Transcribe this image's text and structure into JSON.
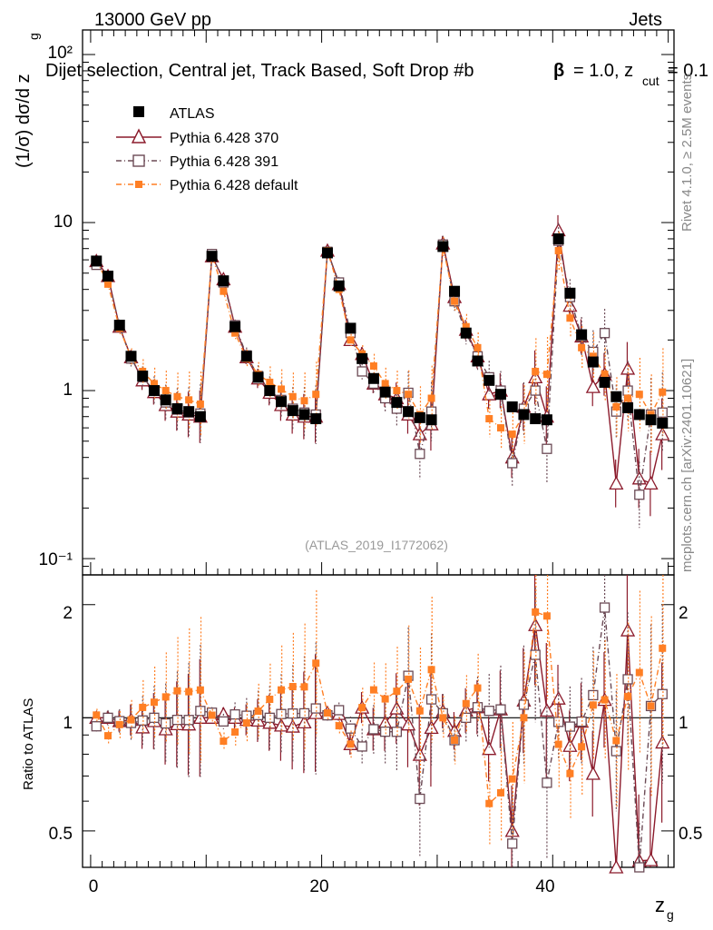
{
  "header": {
    "energy_label": "13000 GeV pp",
    "category_label": "Jets",
    "selection_text": "Dijet selection, Central jet, Track Based, Soft Drop #b",
    "beta_text": "= 1.0, z",
    "cut_sub": "cut",
    "zcut_value": "= 0.1",
    "side_top": "Rivet 4.1.0, ≥ 2.5M events",
    "side_bottom": "mcplots.cern.ch [arXiv:2401.10621]",
    "analysis_id": "(ATLAS_2019_I1772062)"
  },
  "axes": {
    "top_ylabel_main": "(1/σ) dσ/d z",
    "top_ylabel_sub": "g",
    "bottom_ylabel": "Ratio to ATLAS",
    "xlabel_main": "z",
    "xlabel_sub": "g",
    "top_ticks": [
      "10⁻¹",
      "1",
      "10",
      "10²"
    ],
    "bottom_ticks": [
      "0.5",
      "1",
      "2"
    ],
    "x_ticks": [
      "0",
      "20",
      "40"
    ]
  },
  "legend": {
    "data_label": "ATLAS",
    "mc370_label": "Pythia 6.428 370",
    "mc391_label": "Pythia 6.428 391",
    "mcdef_label": "Pythia 6.428 default"
  },
  "colors": {
    "data": "#000000",
    "mc370": "#8b1a2b",
    "mc391": "#6b4a55",
    "mcdef": "#ff7f24"
  },
  "chart_data": {
    "type": "scatter",
    "x_range": [
      -0.7,
      50.5
    ],
    "top_ylim": [
      0.08,
      140
    ],
    "top_yscale": "log",
    "ratio_ylim": [
      0.4,
      2.4
    ],
    "ratio_yscale": "log",
    "x": [
      0.5,
      1.5,
      2.5,
      3.5,
      4.5,
      5.5,
      6.5,
      7.5,
      8.5,
      9.5,
      10.5,
      11.5,
      12.5,
      13.5,
      14.5,
      15.5,
      16.5,
      17.5,
      18.5,
      19.5,
      20.5,
      21.5,
      22.5,
      23.5,
      24.5,
      25.5,
      26.5,
      27.5,
      28.5,
      29.5,
      30.5,
      31.5,
      32.5,
      33.5,
      34.5,
      35.5,
      36.5,
      37.5,
      38.5,
      39.5,
      40.5,
      41.5,
      42.5,
      43.5,
      44.5,
      45.5,
      46.5,
      47.5,
      48.5,
      49.5
    ],
    "series": [
      {
        "name": "ATLAS",
        "values": [
          5.9,
          4.8,
          2.45,
          1.6,
          1.22,
          1.0,
          0.88,
          0.78,
          0.75,
          0.7,
          6.3,
          4.5,
          2.4,
          1.6,
          1.2,
          1.0,
          0.86,
          0.76,
          0.72,
          0.68,
          6.6,
          4.2,
          2.35,
          1.55,
          1.18,
          0.98,
          0.85,
          0.75,
          0.69,
          0.67,
          7.2,
          3.9,
          2.2,
          1.5,
          1.15,
          0.95,
          0.8,
          0.72,
          0.68,
          0.67,
          8.0,
          3.8,
          2.15,
          1.48,
          1.12,
          0.92,
          0.79,
          0.72,
          0.67,
          0.64
        ]
      },
      {
        "name": "Pythia 6.428 370",
        "values": [
          5.9,
          4.8,
          2.4,
          1.58,
          1.15,
          0.98,
          0.82,
          0.75,
          0.72,
          0.7,
          6.3,
          4.6,
          2.4,
          1.58,
          1.18,
          0.97,
          0.82,
          0.72,
          0.7,
          0.7,
          6.8,
          4.3,
          2.0,
          1.65,
          1.1,
          0.95,
          0.9,
          0.72,
          0.55,
          0.63,
          7.5,
          3.6,
          2.3,
          1.6,
          0.95,
          1.0,
          0.4,
          0.8,
          1.2,
          0.7,
          9.0,
          3.2,
          2.1,
          1.05,
          1.25,
          0.28,
          1.35,
          0.3,
          0.28,
          0.55
        ]
      },
      {
        "name": "Pythia 6.428 391",
        "values": [
          5.6,
          4.8,
          2.4,
          1.55,
          1.2,
          1.0,
          0.85,
          0.77,
          0.74,
          0.73,
          6.5,
          4.4,
          2.45,
          1.62,
          1.22,
          1.0,
          0.88,
          0.78,
          0.74,
          0.72,
          6.7,
          4.4,
          2.2,
          1.3,
          1.1,
          0.9,
          0.78,
          0.97,
          0.42,
          0.75,
          7.4,
          3.4,
          2.2,
          1.6,
          1.2,
          1.0,
          0.37,
          0.78,
          1.0,
          0.45,
          7.8,
          3.6,
          2.1,
          1.7,
          2.2,
          0.75,
          1.0,
          0.24,
          0.72,
          0.74
        ]
      },
      {
        "name": "Pythia 6.428 default",
        "values": [
          6.0,
          4.3,
          2.35,
          1.58,
          1.3,
          1.1,
          1.0,
          0.92,
          0.88,
          0.83,
          6.4,
          3.9,
          2.2,
          1.55,
          1.25,
          1.12,
          1.02,
          0.92,
          0.87,
          0.95,
          6.8,
          4.0,
          2.0,
          1.65,
          1.4,
          1.1,
          1.0,
          0.95,
          0.72,
          0.9,
          7.2,
          3.4,
          2.4,
          1.8,
          0.68,
          0.6,
          0.55,
          0.72,
          1.3,
          1.25,
          6.8,
          2.7,
          1.8,
          1.6,
          1.25,
          0.8,
          0.9,
          0.95,
          0.72,
          0.98
        ]
      }
    ]
  }
}
